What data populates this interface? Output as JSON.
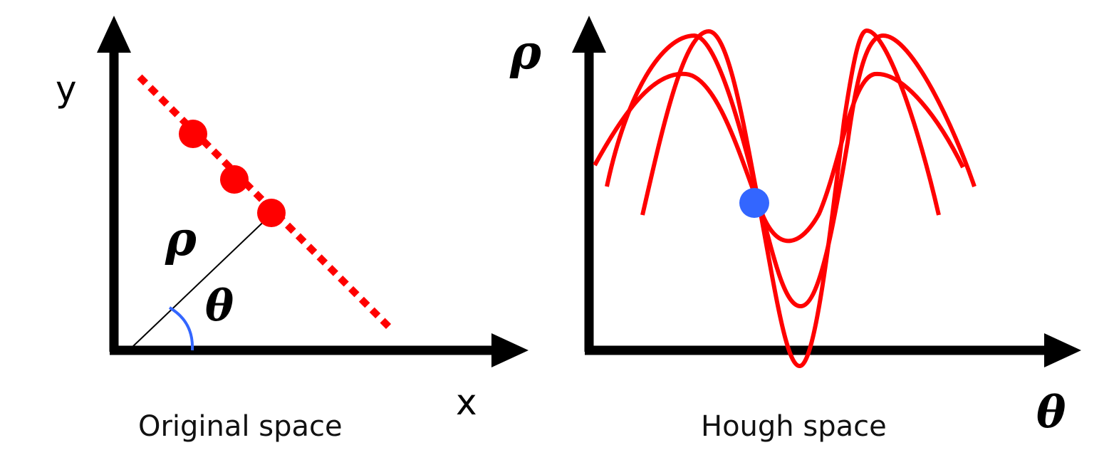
{
  "colors": {
    "axis": "#000000",
    "line": "#ff0000",
    "point": "#ff0000",
    "intersection": "#3366ff",
    "angle_arc": "#3366ff",
    "normal": "#000000"
  },
  "left_panel": {
    "y_label": "y",
    "x_label": "x",
    "rho_label": "ρ",
    "theta_label": "θ",
    "caption": "Original space",
    "point_count": 3
  },
  "right_panel": {
    "y_label": "ρ",
    "x_label": "θ",
    "caption": "Hough space",
    "curve_count": 3
  }
}
